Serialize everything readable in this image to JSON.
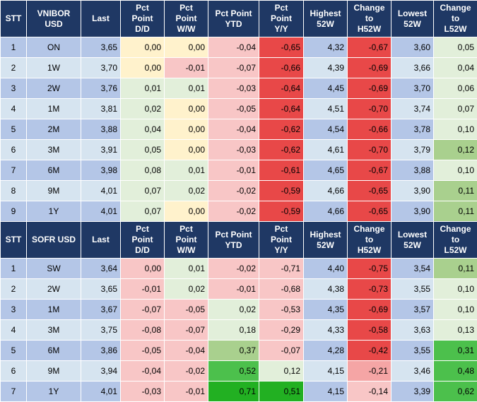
{
  "sections": [
    {
      "headers": [
        "STT",
        "VNIBOR\nUSD",
        "Last",
        "Pct\nPoint\nD/D",
        "Pct\nPoint\nW/W",
        "Pct Point\nYTD",
        "Pct\nPoint\nY/Y",
        "Highest\n52W",
        "Change\nto\nH52W",
        "Lowest\n52W",
        "Change\nto\nL52W"
      ],
      "rows": [
        [
          "1",
          "ON",
          "3,65",
          "0,00",
          "0,00",
          "-0,04",
          "-0,65",
          "4,32",
          "-0,67",
          "3,60",
          "0,05"
        ],
        [
          "2",
          "1W",
          "3,70",
          "0,00",
          "-0,01",
          "-0,07",
          "-0,66",
          "4,39",
          "-0,69",
          "3,66",
          "0,04"
        ],
        [
          "3",
          "2W",
          "3,76",
          "0,01",
          "0,01",
          "-0,03",
          "-0,64",
          "4,45",
          "-0,69",
          "3,70",
          "0,06"
        ],
        [
          "4",
          "1M",
          "3,81",
          "0,02",
          "0,00",
          "-0,05",
          "-0,64",
          "4,51",
          "-0,70",
          "3,74",
          "0,07"
        ],
        [
          "5",
          "2M",
          "3,88",
          "0,04",
          "0,00",
          "-0,04",
          "-0,62",
          "4,54",
          "-0,66",
          "3,78",
          "0,10"
        ],
        [
          "6",
          "3M",
          "3,91",
          "0,05",
          "0,00",
          "-0,03",
          "-0,62",
          "4,61",
          "-0,70",
          "3,79",
          "0,12"
        ],
        [
          "7",
          "6M",
          "3,98",
          "0,08",
          "0,01",
          "-0,01",
          "-0,61",
          "4,65",
          "-0,67",
          "3,88",
          "0,10"
        ],
        [
          "8",
          "9M",
          "4,01",
          "0,07",
          "0,02",
          "-0,02",
          "-0,59",
          "4,66",
          "-0,65",
          "3,90",
          "0,11"
        ],
        [
          "9",
          "1Y",
          "4,01",
          "0,07",
          "0,00",
          "-0,02",
          "-0,59",
          "4,66",
          "-0,65",
          "3,90",
          "0,11"
        ]
      ],
      "styles": [
        [
          "base",
          "base",
          "base",
          "pos1",
          "pos1",
          "neg1",
          "red",
          "base",
          "red",
          "base",
          "grn1"
        ],
        [
          "lgt",
          "lgt",
          "lgt",
          "pos1",
          "neg1",
          "neg1",
          "red",
          "lgt",
          "red",
          "lgt",
          "grn1"
        ],
        [
          "base",
          "base",
          "base",
          "grn1",
          "grn1",
          "neg1",
          "red",
          "base",
          "red",
          "base",
          "grn1"
        ],
        [
          "lgt",
          "lgt",
          "lgt",
          "grn1",
          "pos1",
          "neg1",
          "red",
          "lgt",
          "red",
          "lgt",
          "grn1"
        ],
        [
          "base",
          "base",
          "base",
          "grn1",
          "pos1",
          "neg1",
          "red",
          "base",
          "red",
          "base",
          "grn1"
        ],
        [
          "lgt",
          "lgt",
          "lgt",
          "grn1",
          "pos1",
          "neg1",
          "red",
          "lgt",
          "red",
          "lgt",
          "grn2"
        ],
        [
          "base",
          "base",
          "base",
          "grn1",
          "grn1",
          "neg1",
          "red",
          "base",
          "red",
          "base",
          "grn1"
        ],
        [
          "lgt",
          "lgt",
          "lgt",
          "grn1",
          "grn1",
          "neg1",
          "red",
          "lgt",
          "red",
          "lgt",
          "grn2"
        ],
        [
          "base",
          "base",
          "base",
          "grn1",
          "pos1",
          "neg1",
          "red",
          "base",
          "red",
          "base",
          "grn2"
        ]
      ]
    },
    {
      "headers": [
        "STT",
        "SOFR USD",
        "Last",
        "Pct\nPoint\nD/D",
        "Pct\nPoint\nW/W",
        "Pct Point\nYTD",
        "Pct\nPoint\nY/Y",
        "Highest\n52W",
        "Change\nto\nH52W",
        "Lowest\n52W",
        "Change\nto\nL52W"
      ],
      "rows": [
        [
          "1",
          "SW",
          "3,64",
          "0,00",
          "0,01",
          "-0,02",
          "-0,71",
          "4,40",
          "-0,75",
          "3,54",
          "0,11"
        ],
        [
          "2",
          "2W",
          "3,65",
          "-0,01",
          "0,02",
          "-0,01",
          "-0,68",
          "4,38",
          "-0,73",
          "3,55",
          "0,10"
        ],
        [
          "3",
          "1M",
          "3,67",
          "-0,07",
          "-0,05",
          "0,02",
          "-0,53",
          "4,35",
          "-0,69",
          "3,57",
          "0,10"
        ],
        [
          "4",
          "3M",
          "3,75",
          "-0,08",
          "-0,07",
          "0,18",
          "-0,29",
          "4,33",
          "-0,58",
          "3,63",
          "0,13"
        ],
        [
          "5",
          "6M",
          "3,86",
          "-0,05",
          "-0,04",
          "0,37",
          "-0,07",
          "4,28",
          "-0,42",
          "3,55",
          "0,31"
        ],
        [
          "6",
          "9M",
          "3,94",
          "-0,04",
          "-0,02",
          "0,52",
          "0,12",
          "4,15",
          "-0,21",
          "3,46",
          "0,48"
        ],
        [
          "7",
          "1Y",
          "4,01",
          "-0,03",
          "-0,01",
          "0,71",
          "0,51",
          "4,15",
          "-0,14",
          "3,39",
          "0,62"
        ]
      ],
      "styles": [
        [
          "base",
          "base",
          "base",
          "neg1",
          "grn1",
          "neg1",
          "neg1",
          "base",
          "red",
          "base",
          "grn2"
        ],
        [
          "lgt",
          "lgt",
          "lgt",
          "neg1",
          "grn1",
          "neg1",
          "neg1",
          "lgt",
          "red",
          "lgt",
          "grn1"
        ],
        [
          "base",
          "base",
          "base",
          "neg1",
          "neg1",
          "grn1",
          "neg1",
          "base",
          "red",
          "base",
          "grn1"
        ],
        [
          "lgt",
          "lgt",
          "lgt",
          "neg1",
          "neg1",
          "grn1",
          "neg1",
          "lgt",
          "red",
          "lgt",
          "grn1"
        ],
        [
          "base",
          "base",
          "base",
          "neg1",
          "neg1",
          "grn2",
          "neg1",
          "base",
          "red",
          "base",
          "grn3"
        ],
        [
          "lgt",
          "lgt",
          "lgt",
          "neg1",
          "neg1",
          "grn3",
          "grn1",
          "lgt",
          "neg2",
          "lgt",
          "grn3"
        ],
        [
          "base",
          "base",
          "base",
          "neg1",
          "neg1",
          "grn4",
          "grn4",
          "base",
          "neg1",
          "base",
          "grn3"
        ]
      ]
    }
  ]
}
